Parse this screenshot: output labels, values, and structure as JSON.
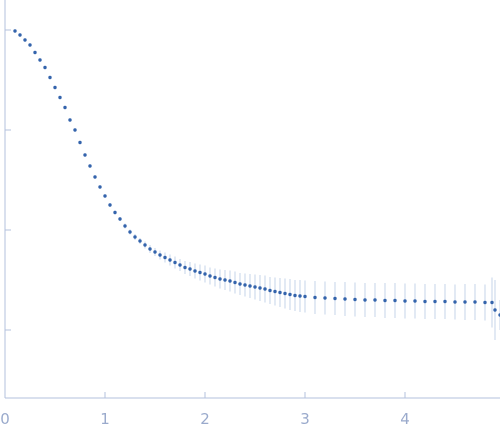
{
  "chart_data": {
    "type": "scatter",
    "title": "",
    "xlabel": "",
    "ylabel": "",
    "xlim": [
      0,
      4.95
    ],
    "ylim": [
      0.31,
      1.0
    ],
    "x_ticks": [
      0,
      1,
      2,
      3,
      4
    ],
    "x_tick_labels": [
      "0",
      "1",
      "2",
      "3",
      "4"
    ],
    "y_ticks": [
      0.4,
      0.6,
      0.8,
      1.0
    ],
    "grid": false,
    "legend": "none",
    "colors": {
      "points": "#3464ac",
      "error_bars": "#aac0e0",
      "axes": "#b3c1dc",
      "tick_labels": "#9aaacc"
    },
    "series": [
      {
        "x": [
          0.1,
          0.15,
          0.2,
          0.25,
          0.3,
          0.35,
          0.4,
          0.45,
          0.5,
          0.55,
          0.6,
          0.65,
          0.7,
          0.75,
          0.8,
          0.85,
          0.9,
          0.95,
          1.0,
          1.05,
          1.1,
          1.15,
          1.2,
          1.25,
          1.3,
          1.35,
          1.4,
          1.45,
          1.5,
          1.55,
          1.6,
          1.65,
          1.7,
          1.75,
          1.8,
          1.85,
          1.9,
          1.95,
          2.0,
          2.05,
          2.1,
          2.15,
          2.2,
          2.25,
          2.3,
          2.35,
          2.4,
          2.45,
          2.5,
          2.55,
          2.6,
          2.65,
          2.7,
          2.75,
          2.8,
          2.85,
          2.9,
          2.95,
          3.0,
          3.1,
          3.2,
          3.3,
          3.4,
          3.5,
          3.6,
          3.7,
          3.8,
          3.9,
          4.0,
          4.1,
          4.2,
          4.3,
          4.4,
          4.5,
          4.6,
          4.7,
          4.8,
          4.87,
          4.9,
          4.95
        ],
        "y": [
          0.998,
          0.99,
          0.98,
          0.97,
          0.955,
          0.94,
          0.925,
          0.905,
          0.885,
          0.865,
          0.845,
          0.82,
          0.8,
          0.775,
          0.75,
          0.728,
          0.706,
          0.686,
          0.668,
          0.65,
          0.635,
          0.622,
          0.608,
          0.596,
          0.586,
          0.578,
          0.57,
          0.562,
          0.556,
          0.55,
          0.545,
          0.54,
          0.535,
          0.53,
          0.525,
          0.522,
          0.518,
          0.515,
          0.512,
          0.508,
          0.505,
          0.502,
          0.5,
          0.498,
          0.495,
          0.492,
          0.49,
          0.488,
          0.486,
          0.484,
          0.482,
          0.479,
          0.477,
          0.475,
          0.473,
          0.471,
          0.469,
          0.468,
          0.467,
          0.465,
          0.464,
          0.463,
          0.462,
          0.461,
          0.46,
          0.46,
          0.459,
          0.459,
          0.458,
          0.458,
          0.457,
          0.457,
          0.457,
          0.456,
          0.456,
          0.456,
          0.455,
          0.455,
          0.44,
          0.43
        ],
        "err": [
          0.001,
          0.001,
          0.001,
          0.001,
          0.001,
          0.001,
          0.001,
          0.001,
          0.002,
          0.002,
          0.002,
          0.002,
          0.002,
          0.002,
          0.002,
          0.003,
          0.003,
          0.003,
          0.003,
          0.004,
          0.004,
          0.004,
          0.005,
          0.005,
          0.006,
          0.006,
          0.007,
          0.008,
          0.008,
          0.009,
          0.01,
          0.011,
          0.012,
          0.012,
          0.013,
          0.014,
          0.015,
          0.016,
          0.017,
          0.017,
          0.018,
          0.019,
          0.02,
          0.021,
          0.022,
          0.022,
          0.023,
          0.024,
          0.025,
          0.026,
          0.027,
          0.027,
          0.028,
          0.029,
          0.03,
          0.031,
          0.031,
          0.032,
          0.032,
          0.033,
          0.033,
          0.033,
          0.034,
          0.034,
          0.034,
          0.034,
          0.035,
          0.035,
          0.035,
          0.035,
          0.035,
          0.035,
          0.035,
          0.035,
          0.036,
          0.036,
          0.036,
          0.05,
          0.06,
          0.03
        ]
      }
    ]
  }
}
